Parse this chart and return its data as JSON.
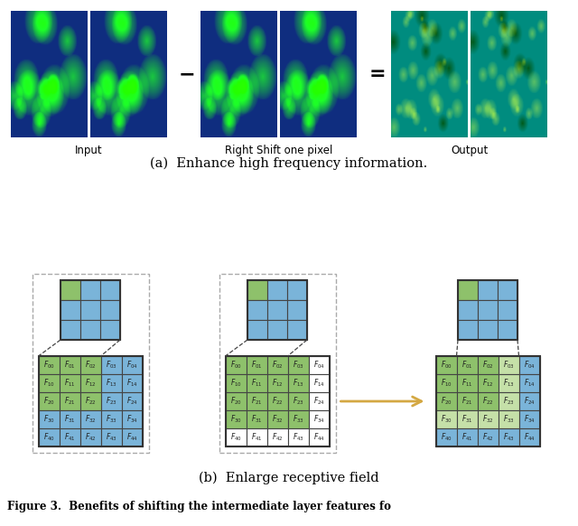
{
  "fig_width": 6.4,
  "fig_height": 5.82,
  "dpi": 100,
  "bg_color": "#ffffff",
  "blue_color": "#7ab4d9",
  "green_color": "#8ec16b",
  "light_green_color": "#c5e0a8",
  "white_color": "#ffffff",
  "grid_line_color": "#444444",
  "dashed_color": "#aaaaaa",
  "subtitle_a": "(a)  Enhance high frequency information.",
  "subtitle_b": "(b)  Enlarge receptive field",
  "label_input": "Input",
  "label_shift": "Right Shift one pixel",
  "label_output": "Output",
  "caption": "Figure 3.  Benefits of shifting the intermediate layer features fo",
  "arrow_color": "#d4a843",
  "minus_sign": "−",
  "equals_sign": "="
}
